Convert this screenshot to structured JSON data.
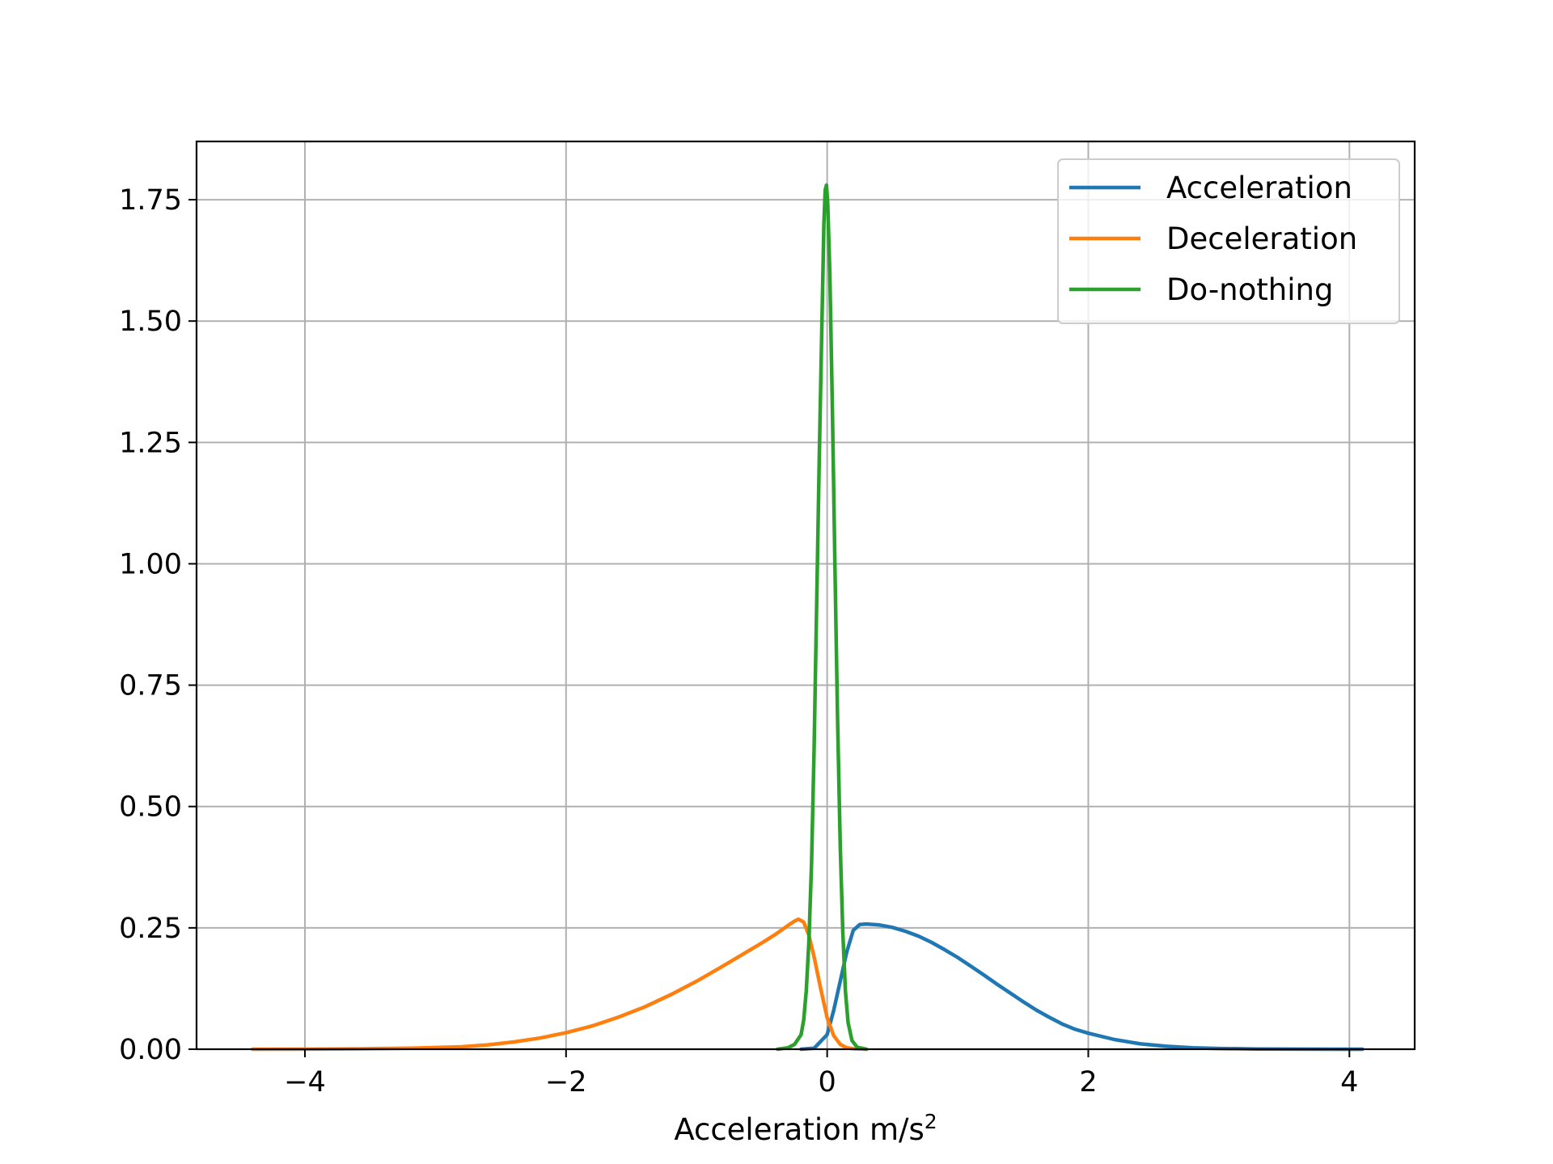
{
  "chart_data": {
    "type": "line",
    "title": "",
    "xlabel": "Acceleration m/s",
    "xlabel_superscript": "2",
    "ylabel": "",
    "xlim": [
      -4.83,
      4.5
    ],
    "ylim": [
      0,
      1.87
    ],
    "xticks": [
      -4,
      -2,
      0,
      2,
      4
    ],
    "xtick_labels": [
      "−4",
      "−2",
      "0",
      "2",
      "4"
    ],
    "yticks": [
      0,
      0.25,
      0.5,
      0.75,
      1.0,
      1.25,
      1.5,
      1.75
    ],
    "ytick_labels": [
      "0.00",
      "0.25",
      "0.50",
      "0.75",
      "1.00",
      "1.25",
      "1.50",
      "1.75"
    ],
    "grid": true,
    "legend_position": "top-right",
    "series": [
      {
        "name": "Acceleration",
        "color": "#1f77b4",
        "points": [
          [
            -0.2,
            0.0
          ],
          [
            -0.1,
            0.002
          ],
          [
            0.0,
            0.03
          ],
          [
            0.05,
            0.08
          ],
          [
            0.1,
            0.14
          ],
          [
            0.15,
            0.2
          ],
          [
            0.2,
            0.245
          ],
          [
            0.25,
            0.257
          ],
          [
            0.3,
            0.258
          ],
          [
            0.4,
            0.256
          ],
          [
            0.5,
            0.251
          ],
          [
            0.6,
            0.243
          ],
          [
            0.7,
            0.233
          ],
          [
            0.8,
            0.22
          ],
          [
            0.9,
            0.205
          ],
          [
            1.0,
            0.189
          ],
          [
            1.1,
            0.171
          ],
          [
            1.2,
            0.153
          ],
          [
            1.3,
            0.134
          ],
          [
            1.4,
            0.116
          ],
          [
            1.5,
            0.098
          ],
          [
            1.6,
            0.081
          ],
          [
            1.7,
            0.066
          ],
          [
            1.8,
            0.052
          ],
          [
            1.9,
            0.041
          ],
          [
            2.0,
            0.033
          ],
          [
            2.2,
            0.02
          ],
          [
            2.4,
            0.011
          ],
          [
            2.6,
            0.006
          ],
          [
            2.8,
            0.003
          ],
          [
            3.0,
            0.0015
          ],
          [
            3.3,
            0.0005
          ],
          [
            3.6,
            0.0002
          ],
          [
            4.1,
            0.0
          ]
        ]
      },
      {
        "name": "Deceleration",
        "color": "#ff7f0e",
        "points": [
          [
            -4.4,
            0.0
          ],
          [
            -4.0,
            0.0002
          ],
          [
            -3.6,
            0.0008
          ],
          [
            -3.2,
            0.002
          ],
          [
            -2.8,
            0.005
          ],
          [
            -2.6,
            0.009
          ],
          [
            -2.4,
            0.015
          ],
          [
            -2.2,
            0.023
          ],
          [
            -2.0,
            0.034
          ],
          [
            -1.8,
            0.048
          ],
          [
            -1.6,
            0.066
          ],
          [
            -1.4,
            0.087
          ],
          [
            -1.2,
            0.112
          ],
          [
            -1.0,
            0.14
          ],
          [
            -0.8,
            0.171
          ],
          [
            -0.6,
            0.203
          ],
          [
            -0.5,
            0.219
          ],
          [
            -0.4,
            0.236
          ],
          [
            -0.3,
            0.255
          ],
          [
            -0.25,
            0.264
          ],
          [
            -0.22,
            0.268
          ],
          [
            -0.18,
            0.262
          ],
          [
            -0.14,
            0.235
          ],
          [
            -0.1,
            0.19
          ],
          [
            -0.05,
            0.125
          ],
          [
            0.0,
            0.065
          ],
          [
            0.05,
            0.028
          ],
          [
            0.1,
            0.01
          ],
          [
            0.15,
            0.003
          ],
          [
            0.2,
            0.001
          ],
          [
            0.3,
            0.0
          ]
        ]
      },
      {
        "name": "Do-nothing",
        "color": "#2ca02c",
        "points": [
          [
            -0.38,
            0.0
          ],
          [
            -0.3,
            0.003
          ],
          [
            -0.25,
            0.01
          ],
          [
            -0.2,
            0.03
          ],
          [
            -0.18,
            0.06
          ],
          [
            -0.16,
            0.12
          ],
          [
            -0.14,
            0.22
          ],
          [
            -0.12,
            0.38
          ],
          [
            -0.1,
            0.62
          ],
          [
            -0.08,
            0.92
          ],
          [
            -0.06,
            1.22
          ],
          [
            -0.04,
            1.5
          ],
          [
            -0.025,
            1.7
          ],
          [
            -0.015,
            1.77
          ],
          [
            -0.005,
            1.78
          ],
          [
            0.005,
            1.74
          ],
          [
            0.02,
            1.6
          ],
          [
            0.04,
            1.32
          ],
          [
            0.06,
            0.99
          ],
          [
            0.08,
            0.68
          ],
          [
            0.1,
            0.42
          ],
          [
            0.12,
            0.24
          ],
          [
            0.14,
            0.12
          ],
          [
            0.16,
            0.055
          ],
          [
            0.19,
            0.018
          ],
          [
            0.23,
            0.004
          ],
          [
            0.3,
            0.0
          ]
        ]
      }
    ]
  }
}
